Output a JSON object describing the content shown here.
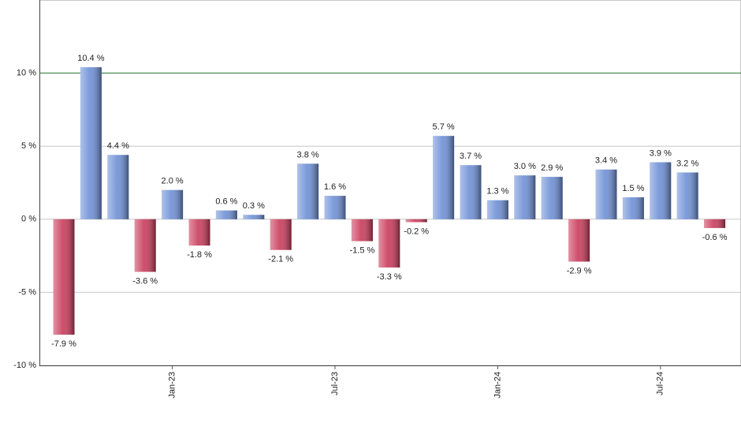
{
  "chart_data": {
    "type": "bar",
    "categories": [
      null,
      null,
      null,
      null,
      "Jan-23",
      null,
      null,
      null,
      null,
      null,
      "Jul-23",
      null,
      null,
      null,
      null,
      null,
      "Jan-24",
      null,
      null,
      null,
      null,
      null,
      "Jul-24",
      null,
      null
    ],
    "values": [
      -7.9,
      10.4,
      4.4,
      -3.6,
      2.0,
      -1.8,
      0.6,
      0.3,
      -2.1,
      3.8,
      1.6,
      -1.5,
      -3.3,
      -0.2,
      5.7,
      3.7,
      1.3,
      3.0,
      2.9,
      -2.9,
      3.4,
      1.5,
      3.9,
      3.2,
      -0.6
    ],
    "value_labels": [
      "-7.9 %",
      "10.4 %",
      "4.4 %",
      "-3.6 %",
      "2.0 %",
      "-1.8 %",
      "0.6 %",
      "0.3 %",
      "-2.1 %",
      "3.8 %",
      "1.6 %",
      "-1.5 %",
      "-3.3 %",
      "-0.2 %",
      "5.7 %",
      "3.7 %",
      "1.3 %",
      "3.0 %",
      "2.9 %",
      "-2.9 %",
      "3.4 %",
      "1.5 %",
      "3.9 %",
      "3.2 %",
      "-0.6 %"
    ],
    "positive_color": "#6d8fd6",
    "negative_color": "#c93a5a",
    "ylim": [
      -10,
      15
    ],
    "yticks": [
      {
        "value": -10,
        "label": "-10 %"
      },
      {
        "value": -5,
        "label": "-5 %"
      },
      {
        "value": 0,
        "label": "0 %"
      },
      {
        "value": 5,
        "label": "5 %"
      },
      {
        "value": 10,
        "label": "10 %"
      }
    ],
    "grid": true,
    "reference_line": {
      "value": 10,
      "color": "#2e7d32"
    }
  }
}
